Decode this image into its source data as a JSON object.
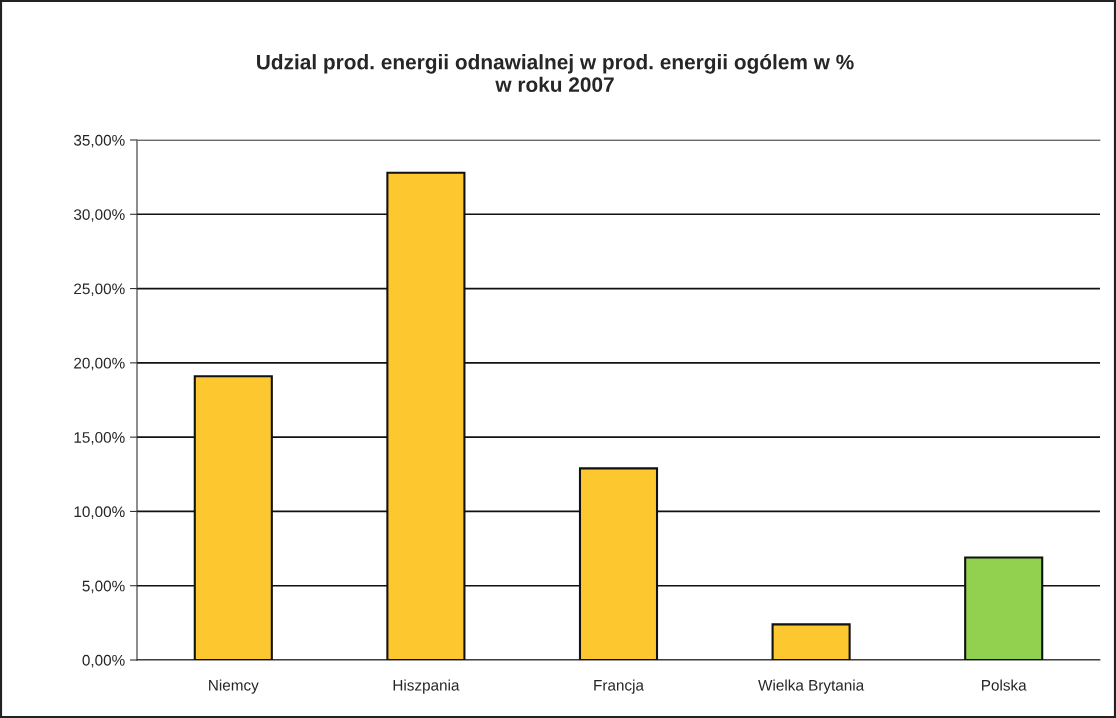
{
  "chart_data": {
    "type": "bar",
    "title": "Udzial prod. energii odnawialnej w prod. energii ogólem w %\nw roku 2007",
    "categories": [
      "Niemcy",
      "Hiszpania",
      "Francja",
      "Wielka Brytania",
      "Polska"
    ],
    "values": [
      19.1,
      32.8,
      12.9,
      2.4,
      6.9
    ],
    "colors": [
      "#fdc82f",
      "#fdc82f",
      "#fdc82f",
      "#fdc82f",
      "#92d050"
    ],
    "ylim": [
      0,
      35
    ],
    "yticks": [
      {
        "value": 0,
        "label": "0,00%"
      },
      {
        "value": 5,
        "label": "5,00%"
      },
      {
        "value": 10,
        "label": "10,00%"
      },
      {
        "value": 15,
        "label": "15,00%"
      },
      {
        "value": 20,
        "label": "20,00%"
      },
      {
        "value": 25,
        "label": "25,00%"
      },
      {
        "value": 30,
        "label": "30,00%"
      },
      {
        "value": 35,
        "label": "35,00%"
      }
    ],
    "grid": "y"
  }
}
